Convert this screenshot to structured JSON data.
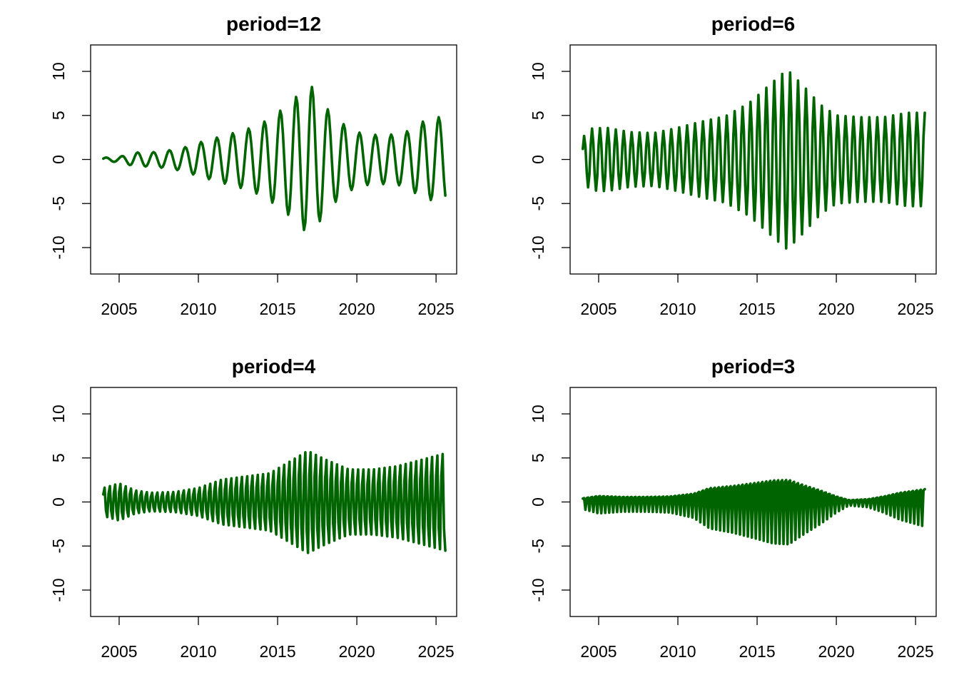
{
  "chart_data": [
    {
      "type": "line",
      "title": "period=12",
      "xlabel": "",
      "ylabel": "",
      "xlim": [
        2003.2,
        2026.3
      ],
      "ylim": [
        -13,
        13
      ],
      "xticks": [
        2005,
        2010,
        2015,
        2020,
        2025
      ],
      "yticks": [
        -10,
        -5,
        0,
        5,
        10
      ],
      "grid": false,
      "color": "#006400",
      "series": [
        {
          "start": 2004.0,
          "end": 2025.6,
          "period_months": 12,
          "envelope_x": [
            2004.0,
            2005.0,
            2006.0,
            2007.0,
            2008.0,
            2009.0,
            2010.0,
            2011.0,
            2012.0,
            2013.0,
            2014.0,
            2015.0,
            2015.5,
            2016.0,
            2016.5,
            2017.0,
            2017.5,
            2018.0,
            2019.0,
            2020.0,
            2021.0,
            2022.0,
            2023.0,
            2024.0,
            2025.0,
            2025.6
          ],
          "envelope_y": [
            0.2,
            0.3,
            0.8,
            0.8,
            1.0,
            1.3,
            1.9,
            2.4,
            2.9,
            3.4,
            4.1,
            5.3,
            6.0,
            6.8,
            7.7,
            8.6,
            7.5,
            6.0,
            4.2,
            3.1,
            2.8,
            2.8,
            3.0,
            4.2,
            4.8,
            4.8
          ]
        }
      ]
    },
    {
      "type": "line",
      "title": "period=6",
      "xlabel": "",
      "ylabel": "",
      "xlim": [
        2003.2,
        2026.3
      ],
      "ylim": [
        -13,
        13
      ],
      "xticks": [
        2005,
        2010,
        2015,
        2020,
        2025
      ],
      "yticks": [
        -10,
        -5,
        0,
        5,
        10
      ],
      "grid": false,
      "color": "#006400",
      "series": [
        {
          "start": 2004.0,
          "end": 2025.6,
          "period_months": 6,
          "envelope_x": [
            2004.0,
            2004.5,
            2005.5,
            2007.0,
            2008.5,
            2010.0,
            2011.5,
            2013.0,
            2014.5,
            2016.0,
            2016.9,
            2018.0,
            2019.0,
            2020.0,
            2021.5,
            2023.0,
            2024.5,
            2025.6
          ],
          "envelope_y": [
            2.5,
            3.5,
            3.6,
            3.1,
            3.0,
            3.6,
            4.3,
            4.9,
            6.4,
            8.8,
            10.2,
            8.2,
            6.2,
            5.0,
            4.8,
            4.8,
            5.3,
            5.3
          ]
        }
      ]
    },
    {
      "type": "line",
      "title": "period=4",
      "xlabel": "",
      "ylabel": "",
      "xlim": [
        2003.2,
        2026.3
      ],
      "ylim": [
        -13,
        13
      ],
      "xticks": [
        2005,
        2010,
        2015,
        2020,
        2025
      ],
      "yticks": [
        -10,
        -5,
        0,
        5,
        10
      ],
      "grid": false,
      "color": "#006400",
      "series": [
        {
          "start": 2004.0,
          "end": 2025.6,
          "period_months": 4,
          "envelope_x": [
            2004.0,
            2005.0,
            2006.0,
            2007.0,
            2008.5,
            2010.0,
            2011.5,
            2013.0,
            2014.5,
            2016.0,
            2016.9,
            2018.0,
            2019.5,
            2021.0,
            2022.5,
            2024.0,
            2025.6
          ],
          "envelope_y": [
            1.8,
            2.4,
            1.5,
            1.2,
            1.3,
            1.8,
            2.9,
            3.3,
            3.7,
            5.5,
            6.6,
            5.5,
            4.2,
            4.2,
            4.6,
            5.4,
            6.3
          ]
        }
      ]
    },
    {
      "type": "line",
      "title": "period=3",
      "xlabel": "",
      "ylabel": "",
      "xlim": [
        2003.2,
        2026.3
      ],
      "ylim": [
        -13,
        13
      ],
      "xticks": [
        2005,
        2010,
        2015,
        2020,
        2025
      ],
      "yticks": [
        -10,
        -5,
        0,
        5,
        10
      ],
      "grid": false,
      "color": "#006400",
      "series": [
        {
          "start": 2004.0,
          "end": 2025.6,
          "period_months": 3,
          "envelope_x": [
            2004.0,
            2005.0,
            2006.5,
            2008.0,
            2009.5,
            2011.0,
            2012.0,
            2013.5,
            2015.0,
            2016.0,
            2017.0,
            2018.0,
            2019.0,
            2020.0,
            2020.8,
            2022.0,
            2023.0,
            2024.0,
            2025.6
          ],
          "envelope_y": [
            0.8,
            1.3,
            1.1,
            1.1,
            1.2,
            1.8,
            3.0,
            3.5,
            4.2,
            4.7,
            4.8,
            3.6,
            2.5,
            1.2,
            0.4,
            0.6,
            1.2,
            2.0,
            2.8
          ]
        }
      ]
    }
  ]
}
